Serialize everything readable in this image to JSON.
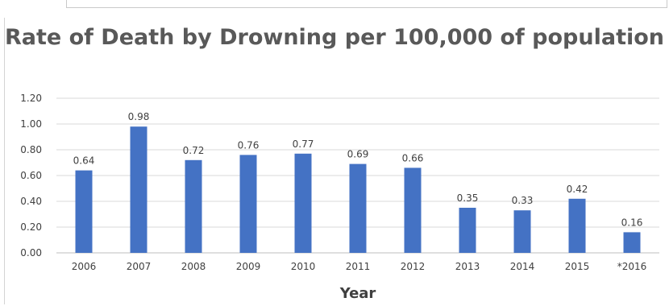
{
  "chart_data": {
    "type": "bar",
    "title": "Rate of Death by Drowning per 100,000 of population",
    "xlabel": "Year",
    "ylabel": "",
    "categories": [
      "2006",
      "2007",
      "2008",
      "2009",
      "2010",
      "2011",
      "2012",
      "2013",
      "2014",
      "2015",
      "*2016"
    ],
    "values": [
      0.64,
      0.98,
      0.72,
      0.76,
      0.77,
      0.69,
      0.66,
      0.35,
      0.33,
      0.42,
      0.16
    ],
    "data_labels": [
      "0.64",
      "0.98",
      "0.72",
      "0.76",
      "0.77",
      "0.69",
      "0.66",
      "0.35",
      "0.33",
      "0.42",
      "0.16"
    ],
    "ylim": [
      0,
      1.2
    ],
    "yticks": [
      "0.00",
      "0.20",
      "0.40",
      "0.60",
      "0.80",
      "1.00",
      "1.20"
    ],
    "grid": true,
    "legend": "none",
    "bar_color": "#4472c4",
    "grid_color": "#d9d9d9"
  }
}
